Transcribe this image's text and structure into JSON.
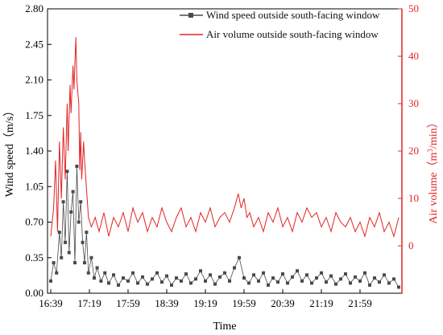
{
  "chart_data": {
    "type": "line",
    "xlabel": "Time",
    "x_ticks": [
      "16:39",
      "17:19",
      "17:59",
      "18:39",
      "19:19",
      "19:59",
      "20:39",
      "21:19",
      "21:59"
    ],
    "x_range_minutes": [
      0,
      360
    ],
    "grid": false,
    "legend_position": "top-right",
    "left_axis": {
      "label": "Wind speed（m/s）",
      "ylim": [
        0,
        2.8
      ],
      "ticks": [
        "0.00",
        "0.35",
        "0.70",
        "1.05",
        "1.40",
        "1.75",
        "2.10",
        "2.45",
        "2.80"
      ],
      "color": "#000000"
    },
    "right_axis": {
      "label": "Air volume（m",
      "label_sup": "3",
      "label_tail": "/min）",
      "ylim": [
        -10,
        50
      ],
      "ticks": [
        "0",
        "10",
        "20",
        "30",
        "40",
        "50"
      ],
      "color": "#e32424"
    },
    "series": [
      {
        "name": "Wind speed outside south-facing window",
        "axis": "left",
        "color": "#4a4a4a",
        "marker": "square",
        "points": [
          [
            0,
            0.12
          ],
          [
            3,
            0.3
          ],
          [
            6,
            0.2
          ],
          [
            9,
            0.6
          ],
          [
            11,
            0.35
          ],
          [
            13,
            0.9
          ],
          [
            15,
            0.5
          ],
          [
            17,
            1.2
          ],
          [
            19,
            0.4
          ],
          [
            21,
            0.8
          ],
          [
            23,
            1.0
          ],
          [
            25,
            0.3
          ],
          [
            27,
            1.25
          ],
          [
            29,
            0.7
          ],
          [
            31,
            0.9
          ],
          [
            33,
            0.5
          ],
          [
            35,
            0.3
          ],
          [
            37,
            0.6
          ],
          [
            39,
            0.2
          ],
          [
            42,
            0.35
          ],
          [
            45,
            0.15
          ],
          [
            48,
            0.25
          ],
          [
            52,
            0.12
          ],
          [
            56,
            0.2
          ],
          [
            60,
            0.1
          ],
          [
            65,
            0.18
          ],
          [
            70,
            0.08
          ],
          [
            75,
            0.15
          ],
          [
            80,
            0.12
          ],
          [
            85,
            0.2
          ],
          [
            90,
            0.1
          ],
          [
            95,
            0.16
          ],
          [
            100,
            0.09
          ],
          [
            105,
            0.14
          ],
          [
            110,
            0.2
          ],
          [
            115,
            0.11
          ],
          [
            120,
            0.17
          ],
          [
            125,
            0.08
          ],
          [
            130,
            0.15
          ],
          [
            135,
            0.12
          ],
          [
            140,
            0.19
          ],
          [
            145,
            0.1
          ],
          [
            150,
            0.14
          ],
          [
            155,
            0.22
          ],
          [
            160,
            0.12
          ],
          [
            165,
            0.18
          ],
          [
            170,
            0.09
          ],
          [
            175,
            0.16
          ],
          [
            180,
            0.2
          ],
          [
            185,
            0.12
          ],
          [
            190,
            0.25
          ],
          [
            195,
            0.35
          ],
          [
            200,
            0.15
          ],
          [
            205,
            0.1
          ],
          [
            210,
            0.18
          ],
          [
            215,
            0.12
          ],
          [
            220,
            0.2
          ],
          [
            225,
            0.08
          ],
          [
            230,
            0.15
          ],
          [
            235,
            0.11
          ],
          [
            240,
            0.19
          ],
          [
            245,
            0.1
          ],
          [
            250,
            0.16
          ],
          [
            255,
            0.22
          ],
          [
            260,
            0.12
          ],
          [
            265,
            0.18
          ],
          [
            270,
            0.1
          ],
          [
            275,
            0.15
          ],
          [
            280,
            0.2
          ],
          [
            285,
            0.11
          ],
          [
            290,
            0.17
          ],
          [
            295,
            0.09
          ],
          [
            300,
            0.14
          ],
          [
            305,
            0.19
          ],
          [
            310,
            0.1
          ],
          [
            315,
            0.16
          ],
          [
            320,
            0.12
          ],
          [
            325,
            0.2
          ],
          [
            330,
            0.08
          ],
          [
            335,
            0.15
          ],
          [
            340,
            0.11
          ],
          [
            345,
            0.18
          ],
          [
            350,
            0.1
          ],
          [
            355,
            0.14
          ],
          [
            360,
            0.06
          ]
        ]
      },
      {
        "name": "Air volume outside south-facing window",
        "axis": "right",
        "color": "#e32424",
        "points": [
          [
            0,
            2
          ],
          [
            3,
            8
          ],
          [
            5,
            18
          ],
          [
            7,
            3
          ],
          [
            9,
            22
          ],
          [
            11,
            10
          ],
          [
            13,
            25
          ],
          [
            15,
            14
          ],
          [
            17,
            30
          ],
          [
            18,
            20
          ],
          [
            20,
            34
          ],
          [
            21,
            28
          ],
          [
            23,
            38
          ],
          [
            24,
            33
          ],
          [
            26,
            44
          ],
          [
            27,
            35
          ],
          [
            29,
            30
          ],
          [
            30,
            16
          ],
          [
            31,
            24
          ],
          [
            32,
            14
          ],
          [
            34,
            22
          ],
          [
            35,
            18
          ],
          [
            37,
            12
          ],
          [
            39,
            6
          ],
          [
            42,
            4
          ],
          [
            46,
            6
          ],
          [
            50,
            3
          ],
          [
            55,
            7
          ],
          [
            60,
            2
          ],
          [
            65,
            6
          ],
          [
            70,
            4
          ],
          [
            75,
            7
          ],
          [
            80,
            3
          ],
          [
            85,
            8
          ],
          [
            90,
            5
          ],
          [
            95,
            7
          ],
          [
            100,
            3
          ],
          [
            105,
            6
          ],
          [
            110,
            4
          ],
          [
            115,
            8
          ],
          [
            120,
            5
          ],
          [
            125,
            3
          ],
          [
            130,
            6
          ],
          [
            135,
            8
          ],
          [
            140,
            4
          ],
          [
            145,
            6
          ],
          [
            150,
            3
          ],
          [
            155,
            7
          ],
          [
            160,
            5
          ],
          [
            165,
            8
          ],
          [
            170,
            4
          ],
          [
            175,
            6
          ],
          [
            180,
            7
          ],
          [
            185,
            5
          ],
          [
            190,
            8
          ],
          [
            194,
            11
          ],
          [
            197,
            8
          ],
          [
            200,
            10
          ],
          [
            203,
            6
          ],
          [
            206,
            7
          ],
          [
            210,
            4
          ],
          [
            215,
            6
          ],
          [
            220,
            3
          ],
          [
            225,
            7
          ],
          [
            230,
            5
          ],
          [
            235,
            8
          ],
          [
            240,
            4
          ],
          [
            245,
            6
          ],
          [
            250,
            3
          ],
          [
            255,
            7
          ],
          [
            260,
            5
          ],
          [
            265,
            8
          ],
          [
            270,
            6
          ],
          [
            275,
            7
          ],
          [
            280,
            4
          ],
          [
            285,
            6
          ],
          [
            290,
            3
          ],
          [
            295,
            7
          ],
          [
            300,
            5
          ],
          [
            305,
            4
          ],
          [
            310,
            6
          ],
          [
            315,
            3
          ],
          [
            320,
            5
          ],
          [
            325,
            2
          ],
          [
            330,
            6
          ],
          [
            335,
            4
          ],
          [
            340,
            7
          ],
          [
            345,
            3
          ],
          [
            350,
            5
          ],
          [
            355,
            2
          ],
          [
            360,
            6
          ]
        ]
      }
    ]
  }
}
